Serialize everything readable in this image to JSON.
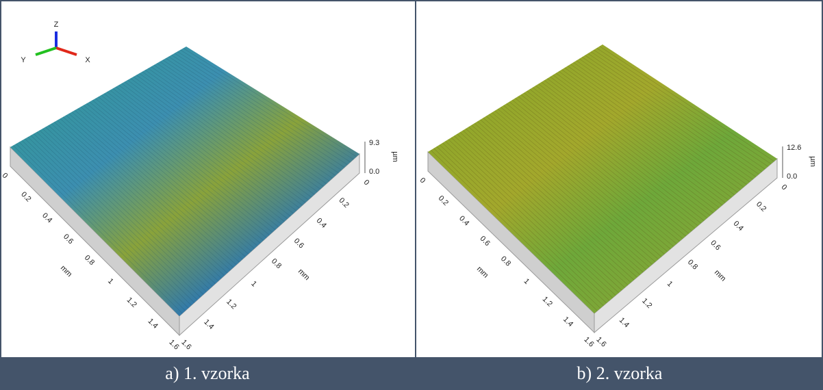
{
  "panels": [
    {
      "caption": "a) 1. vzorka",
      "axis_triad": {
        "z": "Z",
        "y": "Y",
        "x": "X"
      },
      "z_scale": {
        "max": "9.3",
        "min": "0.0",
        "unit": "µm"
      },
      "left_axis": {
        "ticks": [
          "0",
          "0.2",
          "0.4",
          "0.6",
          "0.8",
          "1",
          "1.2",
          "1.4",
          "1.6"
        ],
        "unit": "mm"
      },
      "right_axis": {
        "ticks": [
          "0",
          "0.2",
          "0.4",
          "0.6",
          "0.8",
          "1",
          "1.2",
          "1.4",
          "1.6"
        ],
        "unit": "mm"
      }
    },
    {
      "caption": "b) 2. vzorka",
      "z_scale": {
        "max": "12.6",
        "min": "0.0",
        "unit": "µm"
      },
      "left_axis": {
        "ticks": [
          "0",
          "0.2",
          "0.4",
          "0.6",
          "0.8",
          "1",
          "1.2",
          "1.4",
          "1.6"
        ],
        "unit": "mm"
      },
      "right_axis": {
        "ticks": [
          "0",
          "0.2",
          "0.4",
          "0.6",
          "0.8",
          "1",
          "1.2",
          "1.4",
          "1.6"
        ],
        "unit": "mm"
      }
    }
  ]
}
